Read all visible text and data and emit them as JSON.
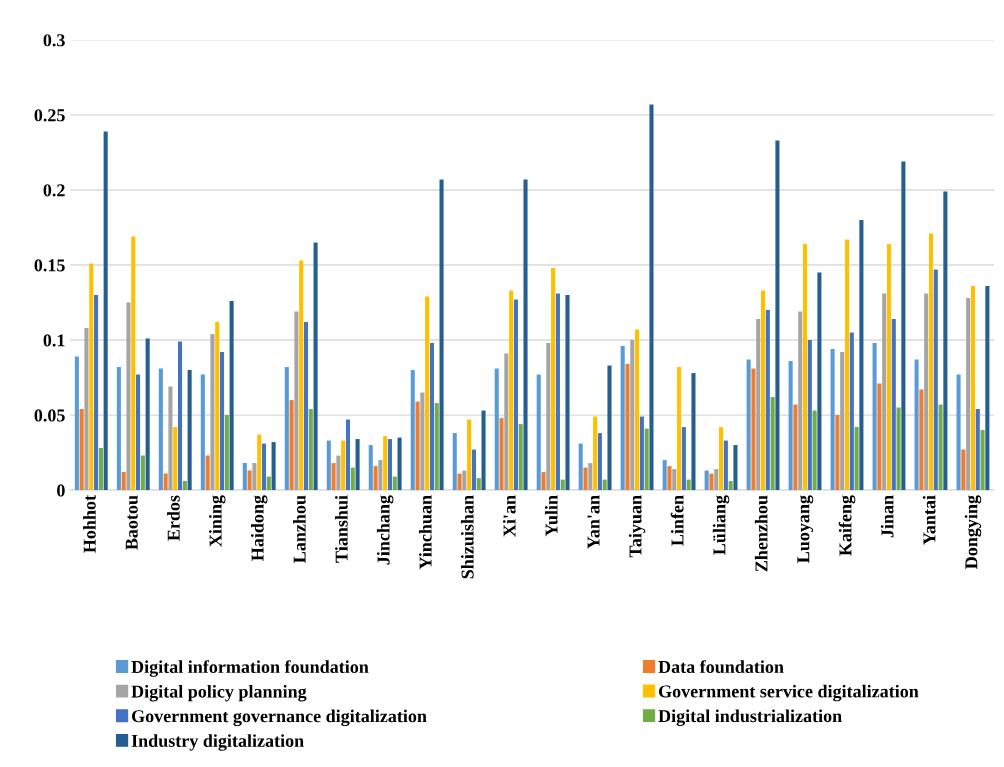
{
  "chart_data": {
    "type": "bar",
    "categories": [
      "Hohhot",
      "Baotou",
      "Erdos",
      "Xining",
      "Haidong",
      "Lanzhou",
      "Tianshui",
      "Jinchang",
      "Yinchuan",
      "Shizuishan",
      "Xi'an",
      "Yulin",
      "Yan'an",
      "Taiyuan",
      "Linfen",
      "Lüliang",
      "Zhenzhou",
      "Luoyang",
      "Kaifeng",
      "Jinan",
      "Yantai",
      "Dongying"
    ],
    "series": [
      {
        "name": "Digital information foundation",
        "color": "#5b9bd5",
        "values": [
          0.089,
          0.082,
          0.081,
          0.077,
          0.018,
          0.082,
          0.033,
          0.03,
          0.08,
          0.038,
          0.081,
          0.077,
          0.031,
          0.096,
          0.02,
          0.013,
          0.087,
          0.086,
          0.094,
          0.098,
          0.087,
          0.077
        ]
      },
      {
        "name": "Data foundation",
        "color": "#ed7d31",
        "values": [
          0.054,
          0.012,
          0.011,
          0.023,
          0.013,
          0.06,
          0.018,
          0.016,
          0.059,
          0.011,
          0.048,
          0.012,
          0.015,
          0.084,
          0.016,
          0.011,
          0.081,
          0.057,
          0.05,
          0.071,
          0.067,
          0.027
        ]
      },
      {
        "name": "Digital policy planning",
        "color": "#a5a5a5",
        "values": [
          0.108,
          0.125,
          0.069,
          0.104,
          0.018,
          0.119,
          0.023,
          0.02,
          0.065,
          0.013,
          0.091,
          0.098,
          0.018,
          0.1,
          0.014,
          0.014,
          0.114,
          0.119,
          0.092,
          0.131,
          0.131,
          0.128
        ]
      },
      {
        "name": "Government service digitalization",
        "color": "#ffc000",
        "values": [
          0.151,
          0.169,
          0.042,
          0.112,
          0.037,
          0.153,
          0.033,
          0.036,
          0.129,
          0.047,
          0.133,
          0.148,
          0.049,
          0.107,
          0.082,
          0.042,
          0.133,
          0.164,
          0.167,
          0.164,
          0.171,
          0.136
        ]
      },
      {
        "name": "Government governance digitalization",
        "color": "#4472c4",
        "values": [
          0.13,
          0.077,
          0.099,
          0.092,
          0.031,
          0.112,
          0.047,
          0.034,
          0.098,
          0.027,
          0.127,
          0.131,
          0.038,
          0.049,
          0.042,
          0.033,
          0.12,
          0.1,
          0.105,
          0.114,
          0.147,
          0.054
        ]
      },
      {
        "name": "Digital industrialization",
        "color": "#70ad47",
        "values": [
          0.028,
          0.023,
          0.006,
          0.05,
          0.009,
          0.054,
          0.015,
          0.009,
          0.058,
          0.008,
          0.044,
          0.007,
          0.007,
          0.041,
          0.007,
          0.006,
          0.062,
          0.053,
          0.042,
          0.055,
          0.057,
          0.04
        ]
      },
      {
        "name": "Industry digitalization",
        "color": "#255e91",
        "values": [
          0.239,
          0.101,
          0.08,
          0.126,
          0.032,
          0.165,
          0.034,
          0.035,
          0.207,
          0.053,
          0.207,
          0.13,
          0.083,
          0.257,
          0.078,
          0.03,
          0.233,
          0.145,
          0.18,
          0.219,
          0.199,
          0.136
        ]
      }
    ],
    "ylim": [
      0,
      0.3
    ],
    "yticks": [
      0,
      0.05,
      0.1,
      0.15,
      0.2,
      0.25,
      0.3
    ],
    "grid": "y",
    "legend": "bottom"
  }
}
